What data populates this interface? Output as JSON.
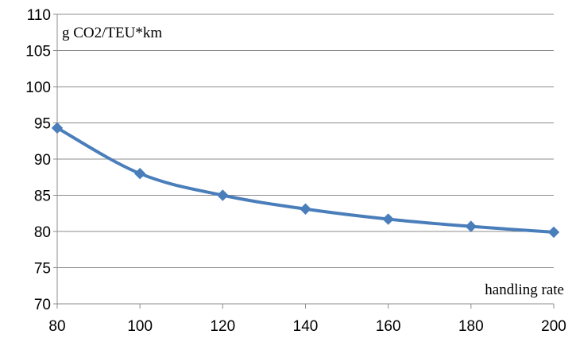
{
  "chart_data": {
    "type": "line",
    "ylabel": "g CO2/TEU*km",
    "xlabel": "handling rate",
    "xlim": [
      80,
      200
    ],
    "ylim": [
      70,
      110
    ],
    "xticks": [
      80,
      100,
      120,
      140,
      160,
      180,
      200
    ],
    "yticks": [
      70,
      75,
      80,
      85,
      90,
      95,
      100,
      105,
      110
    ],
    "grid": true,
    "legend": "none",
    "series": [
      {
        "color": "#4a7ebb",
        "marker": "diamond",
        "smooth": true,
        "x": [
          80,
          100,
          120,
          140,
          160,
          180,
          200
        ],
        "y": [
          94.3,
          88.0,
          85.0,
          83.1,
          81.7,
          80.7,
          79.9
        ]
      }
    ]
  }
}
